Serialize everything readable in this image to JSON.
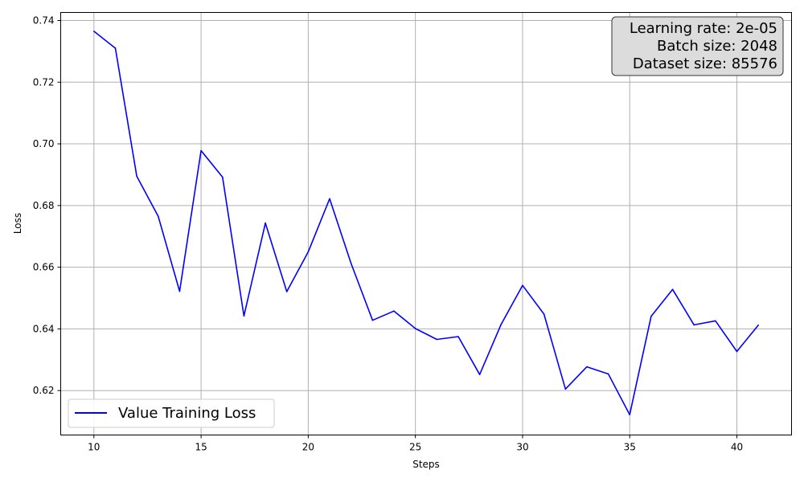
{
  "chart_data": {
    "type": "line",
    "xlabel": "Steps",
    "ylabel": "Loss",
    "xlim": [
      8.45,
      42.55
    ],
    "ylim": [
      0.6056,
      0.7426
    ],
    "xticks": [
      10,
      15,
      20,
      25,
      30,
      35,
      40
    ],
    "yticks": [
      0.62,
      0.64,
      0.66,
      0.68,
      0.7,
      0.72,
      0.74
    ],
    "grid": true,
    "legend_position": "lower-left",
    "info_box": {
      "position": "top-right",
      "lines": [
        "Learning rate: 2e-05",
        "Batch size: 2048",
        "Dataset size: 85576"
      ]
    },
    "series": [
      {
        "name": "Value Training Loss",
        "color": "#0000ff",
        "x": [
          10,
          11,
          12,
          13,
          14,
          15,
          16,
          17,
          18,
          19,
          20,
          21,
          22,
          23,
          24,
          25,
          26,
          27,
          28,
          29,
          30,
          31,
          32,
          33,
          34,
          35,
          36,
          37,
          38,
          39,
          40,
          41
        ],
        "y": [
          0.7365,
          0.731,
          0.6895,
          0.6765,
          0.6522,
          0.6978,
          0.6892,
          0.6442,
          0.6743,
          0.6521,
          0.665,
          0.6822,
          0.6612,
          0.6428,
          0.6458,
          0.6401,
          0.6366,
          0.6375,
          0.6252,
          0.6415,
          0.6541,
          0.6448,
          0.6205,
          0.6277,
          0.6254,
          0.6122,
          0.6441,
          0.6528,
          0.6413,
          0.6426,
          0.6327,
          0.6412
        ]
      }
    ]
  }
}
